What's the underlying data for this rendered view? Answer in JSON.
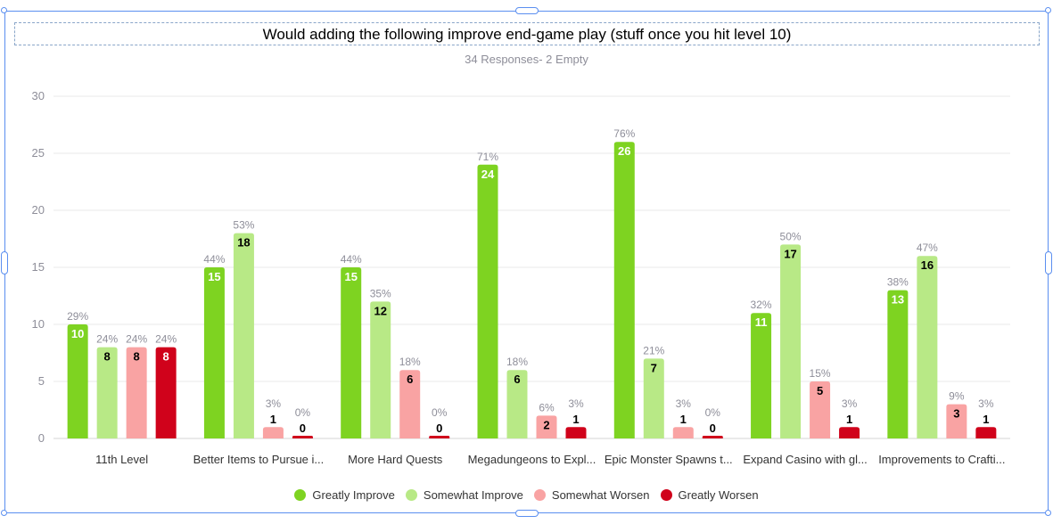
{
  "chart_data": {
    "type": "bar",
    "title": "Would adding the following improve end-game play (stuff once you hit level 10)",
    "subtitle": "34 Responses- 2 Empty",
    "ylim": [
      0,
      30
    ],
    "yticks": [
      0,
      5,
      10,
      15,
      20,
      25,
      30
    ],
    "grid": true,
    "legend_position": "bottom",
    "categories": [
      "11th Level",
      "Better Items to Pursue i...",
      "More Hard Quests",
      "Megadungeons to Expl...",
      "Epic Monster Spawns t...",
      "Expand Casino with gl...",
      "Improvements to Crafti..."
    ],
    "series": [
      {
        "name": "Greatly Improve",
        "color": "#7ed321",
        "label_color": "#ffffff",
        "values": [
          10,
          15,
          15,
          24,
          26,
          11,
          13
        ],
        "percents": [
          "29%",
          "44%",
          "44%",
          "71%",
          "76%",
          "32%",
          "38%"
        ]
      },
      {
        "name": "Somewhat Improve",
        "color": "#b8e986",
        "label_color": "#000000",
        "values": [
          8,
          18,
          12,
          6,
          7,
          17,
          16
        ],
        "percents": [
          "24%",
          "53%",
          "35%",
          "18%",
          "21%",
          "50%",
          "47%"
        ]
      },
      {
        "name": "Somewhat Worsen",
        "color": "#f9a3a3",
        "label_color": "#000000",
        "values": [
          8,
          1,
          6,
          2,
          1,
          5,
          3
        ],
        "percents": [
          "24%",
          "3%",
          "18%",
          "6%",
          "3%",
          "15%",
          "9%"
        ]
      },
      {
        "name": "Greatly Worsen",
        "color": "#d0021b",
        "label_color": "#ffffff",
        "values": [
          8,
          0,
          0,
          1,
          0,
          1,
          1
        ],
        "percents": [
          "24%",
          "0%",
          "0%",
          "3%",
          "0%",
          "3%",
          "3%"
        ]
      }
    ]
  }
}
